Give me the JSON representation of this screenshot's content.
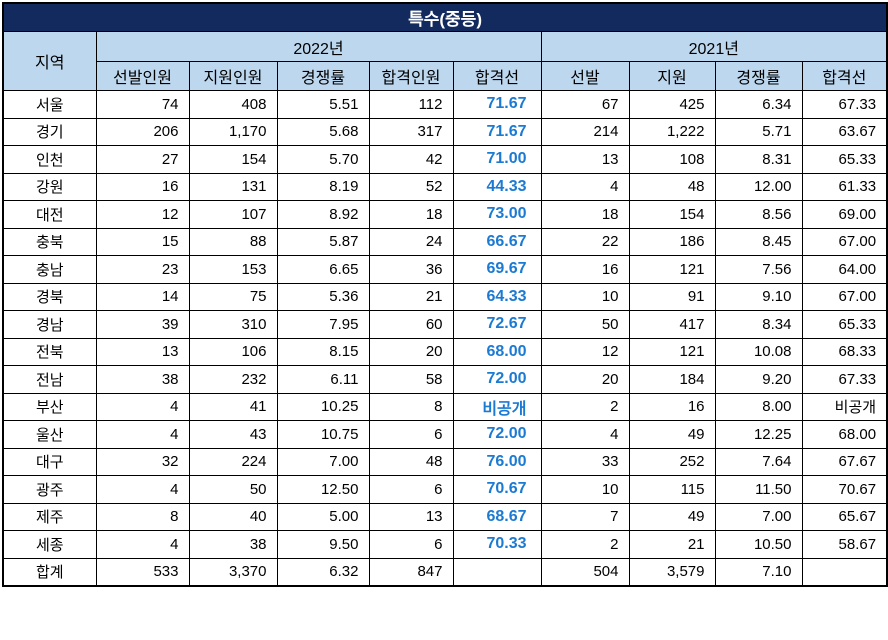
{
  "title": "특수(중등)",
  "header": {
    "region": "지역",
    "y2022": "2022년",
    "y2021": "2021년",
    "cols2022": [
      "선발인원",
      "지원인원",
      "경쟁률",
      "합격인원",
      "합격선"
    ],
    "cols2021": [
      "선발",
      "지원",
      "경쟁률",
      "합격선"
    ]
  },
  "colors": {
    "title_bg": "#122a5e",
    "header_bg": "#bdd7ee",
    "cutline_blue": "#1b7ad2",
    "border": "#000000"
  },
  "rows": [
    [
      "서울",
      "74",
      "408",
      "5.51",
      "112",
      "71.67",
      "67",
      "425",
      "6.34",
      "67.33"
    ],
    [
      "경기",
      "206",
      "1,170",
      "5.68",
      "317",
      "71.67",
      "214",
      "1,222",
      "5.71",
      "63.67"
    ],
    [
      "인천",
      "27",
      "154",
      "5.70",
      "42",
      "71.00",
      "13",
      "108",
      "8.31",
      "65.33"
    ],
    [
      "강원",
      "16",
      "131",
      "8.19",
      "52",
      "44.33",
      "4",
      "48",
      "12.00",
      "61.33"
    ],
    [
      "대전",
      "12",
      "107",
      "8.92",
      "18",
      "73.00",
      "18",
      "154",
      "8.56",
      "69.00"
    ],
    [
      "충북",
      "15",
      "88",
      "5.87",
      "24",
      "66.67",
      "22",
      "186",
      "8.45",
      "67.00"
    ],
    [
      "충남",
      "23",
      "153",
      "6.65",
      "36",
      "69.67",
      "16",
      "121",
      "7.56",
      "64.00"
    ],
    [
      "경북",
      "14",
      "75",
      "5.36",
      "21",
      "64.33",
      "10",
      "91",
      "9.10",
      "67.00"
    ],
    [
      "경남",
      "39",
      "310",
      "7.95",
      "60",
      "72.67",
      "50",
      "417",
      "8.34",
      "65.33"
    ],
    [
      "전북",
      "13",
      "106",
      "8.15",
      "20",
      "68.00",
      "12",
      "121",
      "10.08",
      "68.33"
    ],
    [
      "전남",
      "38",
      "232",
      "6.11",
      "58",
      "72.00",
      "20",
      "184",
      "9.20",
      "67.33"
    ],
    [
      "부산",
      "4",
      "41",
      "10.25",
      "8",
      "비공개",
      "2",
      "16",
      "8.00",
      "비공개"
    ],
    [
      "울산",
      "4",
      "43",
      "10.75",
      "6",
      "72.00",
      "4",
      "49",
      "12.25",
      "68.00"
    ],
    [
      "대구",
      "32",
      "224",
      "7.00",
      "48",
      "76.00",
      "33",
      "252",
      "7.64",
      "67.67"
    ],
    [
      "광주",
      "4",
      "50",
      "12.50",
      "6",
      "70.67",
      "10",
      "115",
      "11.50",
      "70.67"
    ],
    [
      "제주",
      "8",
      "40",
      "5.00",
      "13",
      "68.67",
      "7",
      "49",
      "7.00",
      "65.67"
    ],
    [
      "세종",
      "4",
      "38",
      "9.50",
      "6",
      "70.33",
      "2",
      "21",
      "10.50",
      "58.67"
    ],
    [
      "합계",
      "533",
      "3,370",
      "6.32",
      "847",
      "",
      "504",
      "3,579",
      "7.10",
      ""
    ]
  ]
}
